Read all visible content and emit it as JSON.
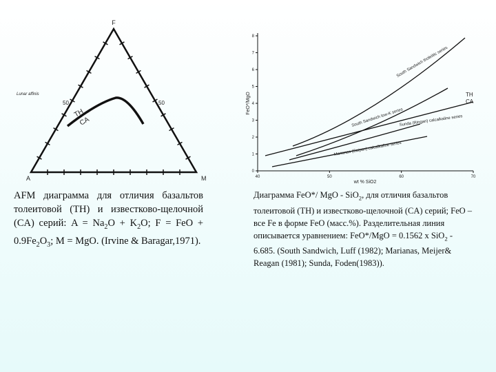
{
  "left_figure": {
    "apex_top": "F",
    "apex_left": "A",
    "apex_right": "M",
    "side_label_left": "50",
    "side_label_right": "50",
    "curve_label_th": "TH",
    "curve_label_ca": "CA",
    "note": "Lunar affinis"
  },
  "right_figure": {
    "y_label": "FeO*/MgO",
    "x_label": "wt % SiO2",
    "ylim": [
      0,
      8
    ],
    "yticks": [
      0,
      1,
      2,
      3,
      4,
      5,
      6,
      7,
      8
    ],
    "xlim": [
      40,
      70
    ],
    "xticks": [
      40,
      50,
      60,
      70
    ],
    "curve_labels": [
      "South Sandwich tholeiitic series",
      "South Sandwich low-K series",
      "Sunda (Ringan) calcalkaline series",
      "Marianas (Saipan) calcalkaline series"
    ],
    "line_label_th": "TH",
    "line_label_ca": "CA"
  },
  "left_caption": [
    {
      "t": "AFM диаграмма для отличия базальтов толеитовой (TH) и известково-щелочной (CA) серий: A = Na"
    },
    {
      "sub": "2"
    },
    {
      "t": "O + K"
    },
    {
      "sub": "2"
    },
    {
      "t": "O; F = FeO + 0.9Fe"
    },
    {
      "sub": "2"
    },
    {
      "t": "O"
    },
    {
      "sub": "3"
    },
    {
      "t": "; M = MgO. (Irvine & Baragar,1971)."
    }
  ],
  "right_caption": [
    {
      "t": "Диаграмма FeO*/ MgO - SiO"
    },
    {
      "sub": "2"
    },
    {
      "t": ", для отличия базальтов толеитовой (TH) и известково-щелочной (CA) серий; FeO – все Fe в форме FeO (масс.%). Разделительная линия описывается уравнением: FeO*/MgO = 0.1562 x SiO"
    },
    {
      "sub": "2"
    },
    {
      "t": " - 6.685. (South Sandwich, Luff (1982); Marianas, Meijer& Reagan (1981); Sunda, Foden(1983))."
    }
  ]
}
